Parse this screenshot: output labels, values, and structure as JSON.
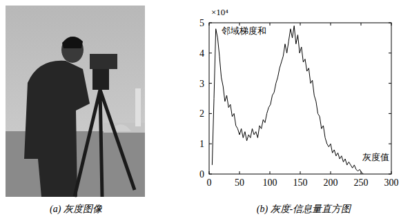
{
  "chart_data": {
    "type": "line",
    "color": "#000000",
    "y_label": "邻域梯度和",
    "x_label": "灰度值",
    "y_exponent_label": "×10⁴",
    "x": [
      5,
      8,
      11,
      14,
      17,
      20,
      23,
      26,
      29,
      32,
      35,
      38,
      41,
      44,
      47,
      50,
      53,
      56,
      59,
      62,
      65,
      68,
      71,
      74,
      77,
      80,
      83,
      86,
      89,
      92,
      95,
      98,
      101,
      104,
      107,
      110,
      113,
      116,
      119,
      122,
      125,
      128,
      131,
      134,
      137,
      140,
      143,
      146,
      149,
      152,
      155,
      158,
      161,
      164,
      167,
      170,
      173,
      176,
      179,
      182,
      185,
      188,
      191,
      194,
      197,
      200,
      203,
      206,
      209,
      212,
      215,
      218,
      221,
      224,
      227,
      230,
      233,
      236,
      239,
      242,
      245,
      248,
      251,
      254
    ],
    "values": [
      0.3,
      2.5,
      4.8,
      4.5,
      3.9,
      3.2,
      2.9,
      2.4,
      2.6,
      2.2,
      2.3,
      1.9,
      2.0,
      1.6,
      1.5,
      1.3,
      1.5,
      1.2,
      1.4,
      1.1,
      1.3,
      1.2,
      1.5,
      1.3,
      1.4,
      1.2,
      1.6,
      1.5,
      1.8,
      1.7,
      2.0,
      2.2,
      2.3,
      2.6,
      2.7,
      3.0,
      3.2,
      3.5,
      3.7,
      3.9,
      4.3,
      4.0,
      4.4,
      4.8,
      4.5,
      4.9,
      4.3,
      4.6,
      4.0,
      4.2,
      3.7,
      3.8,
      3.4,
      3.5,
      3.0,
      3.1,
      2.6,
      2.4,
      2.0,
      1.9,
      1.5,
      1.6,
      1.2,
      1.0,
      0.9,
      1.0,
      0.7,
      0.8,
      0.6,
      0.7,
      0.5,
      0.6,
      0.4,
      0.5,
      0.3,
      0.4,
      0.3,
      0.2,
      0.3,
      0.15,
      0.1,
      0.15,
      0.05,
      0.0
    ],
    "xlim": [
      0,
      300
    ],
    "xticks": [
      0,
      50,
      100,
      150,
      200,
      250,
      300
    ],
    "ylim": [
      0,
      5
    ],
    "yticks": [
      0,
      1,
      2,
      3,
      4,
      5
    ],
    "grid": false
  },
  "figure": {
    "captions": [
      "(a) 灰度图像",
      "(b) 灰度-信息量直方图"
    ]
  }
}
